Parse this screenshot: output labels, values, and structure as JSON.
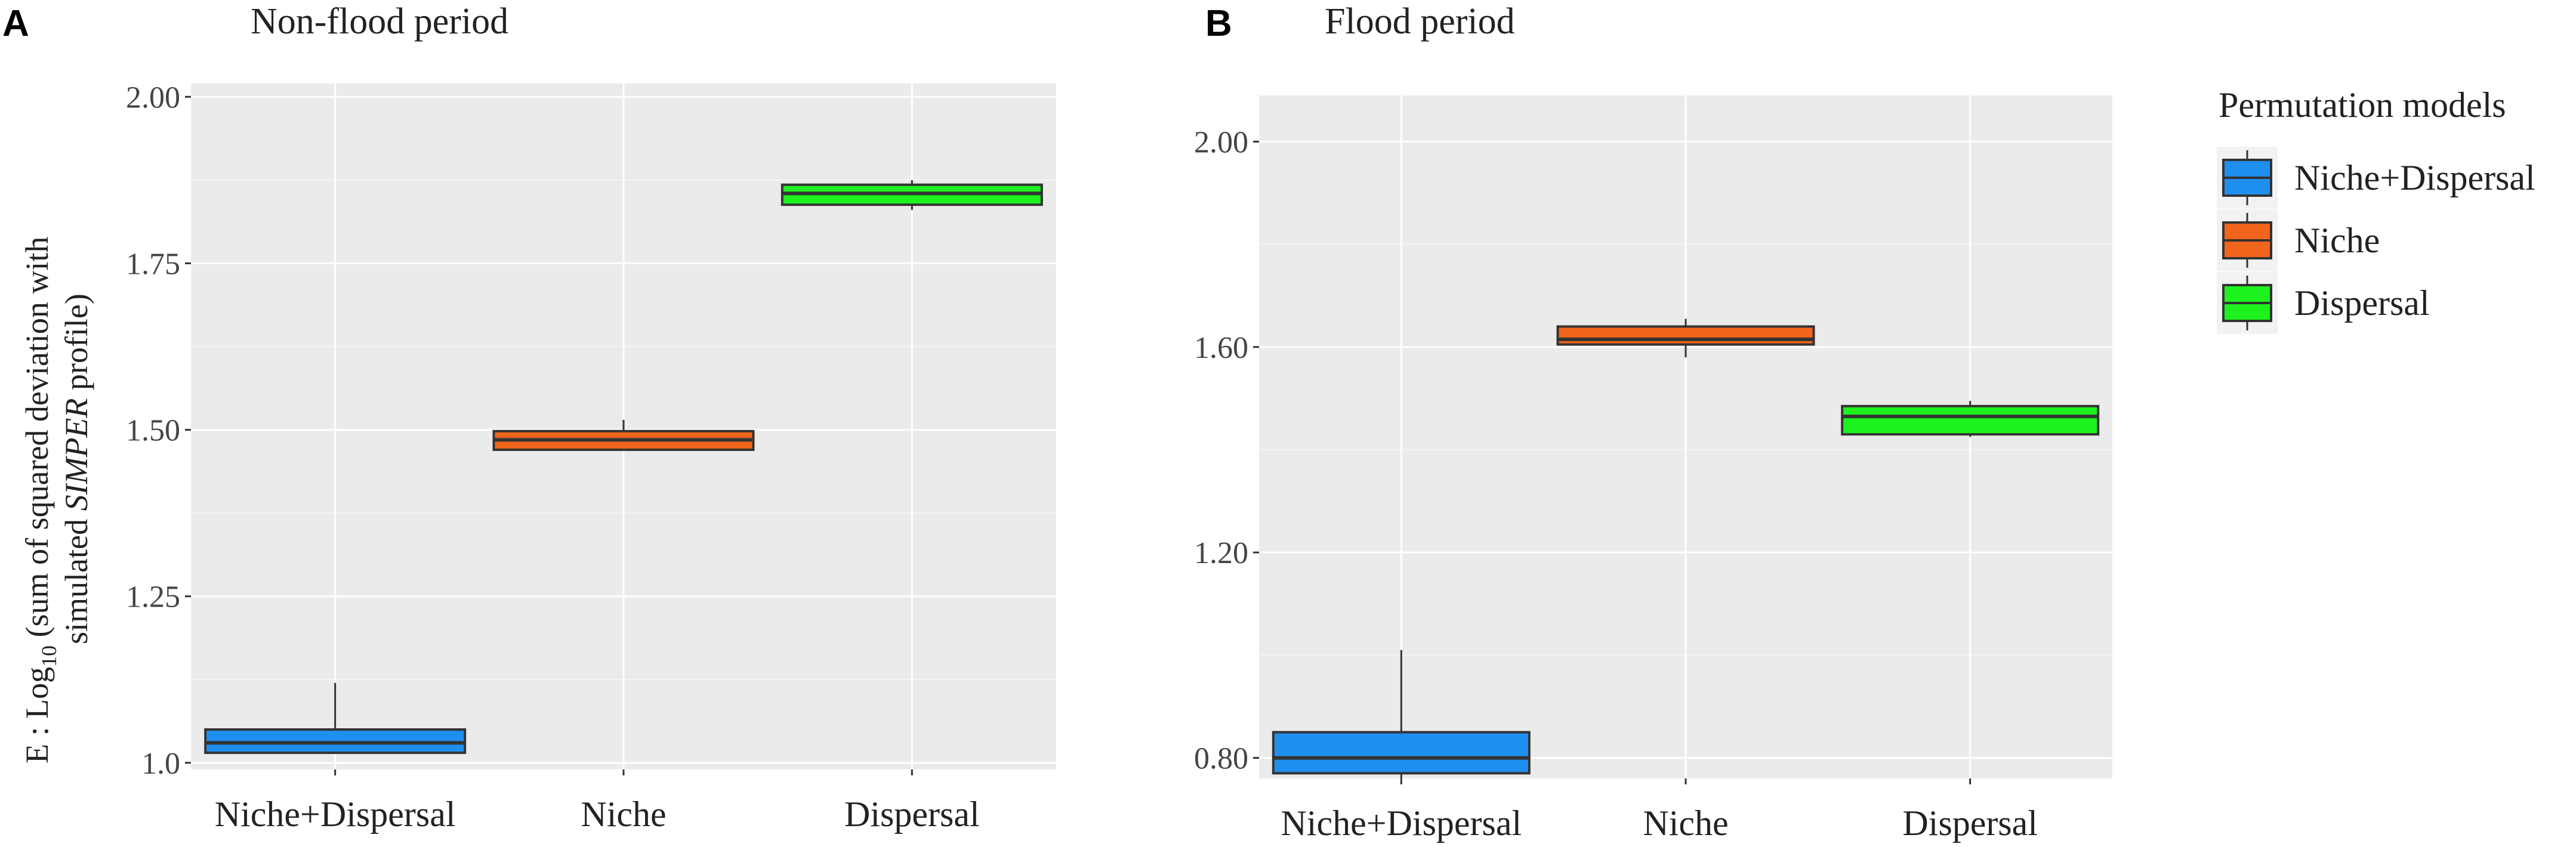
{
  "colors": {
    "panel_bg": "#ebebeb",
    "grid": "#ffffff",
    "niche_dispersal": "#1f8fef",
    "niche": "#f2651c",
    "dispersal": "#1ef21e",
    "outline": "#333333"
  },
  "legend": {
    "title": "Permutation models",
    "items": [
      "Niche+Dispersal",
      "Niche",
      "Dispersal"
    ]
  },
  "y_axis_label": {
    "line1_prefix": "E : Log",
    "line1_sub": "10",
    "line1_rest": " (sum of squared deviation with",
    "line2_pre": "simulated ",
    "line2_italic": "SIMPER",
    "line2_post": " profile)"
  },
  "chart_data": [
    {
      "type": "box",
      "panel_letter": "A",
      "title": "Non-flood period",
      "categories": [
        "Niche+Dispersal",
        "Niche",
        "Dispersal"
      ],
      "ylim": [
        0.99,
        2.02
      ],
      "yticks": [
        1.0,
        1.25,
        1.5,
        1.75,
        2.0
      ],
      "ytick_labels": [
        "1.0",
        "1.25",
        "1.50",
        "1.75",
        "2.00"
      ],
      "boxes": [
        {
          "category": "Niche+Dispersal",
          "whisker_low": 1.015,
          "q1": 1.015,
          "median": 1.03,
          "q3": 1.05,
          "whisker_high": 1.12
        },
        {
          "category": "Niche",
          "whisker_low": 1.47,
          "q1": 1.47,
          "median": 1.485,
          "q3": 1.498,
          "whisker_high": 1.515
        },
        {
          "category": "Dispersal",
          "whisker_low": 1.83,
          "q1": 1.838,
          "median": 1.855,
          "q3": 1.868,
          "whisker_high": 1.875
        }
      ]
    },
    {
      "type": "box",
      "panel_letter": "B",
      "title": "Flood period",
      "categories": [
        "Niche+Dispersal",
        "Niche",
        "Dispersal"
      ],
      "ylim": [
        0.76,
        2.09
      ],
      "yticks": [
        0.8,
        1.2,
        1.6,
        2.0
      ],
      "ytick_labels": [
        "0.80",
        "1.20",
        "1.60",
        "2.00"
      ],
      "boxes": [
        {
          "category": "Niche+Dispersal",
          "whisker_low": 0.76,
          "q1": 0.77,
          "median": 0.8,
          "q3": 0.85,
          "whisker_high": 1.01
        },
        {
          "category": "Niche",
          "whisker_low": 1.58,
          "q1": 1.605,
          "median": 1.615,
          "q3": 1.64,
          "whisker_high": 1.655
        },
        {
          "category": "Dispersal",
          "whisker_low": 1.425,
          "q1": 1.43,
          "median": 1.465,
          "q3": 1.485,
          "whisker_high": 1.495
        }
      ]
    }
  ]
}
